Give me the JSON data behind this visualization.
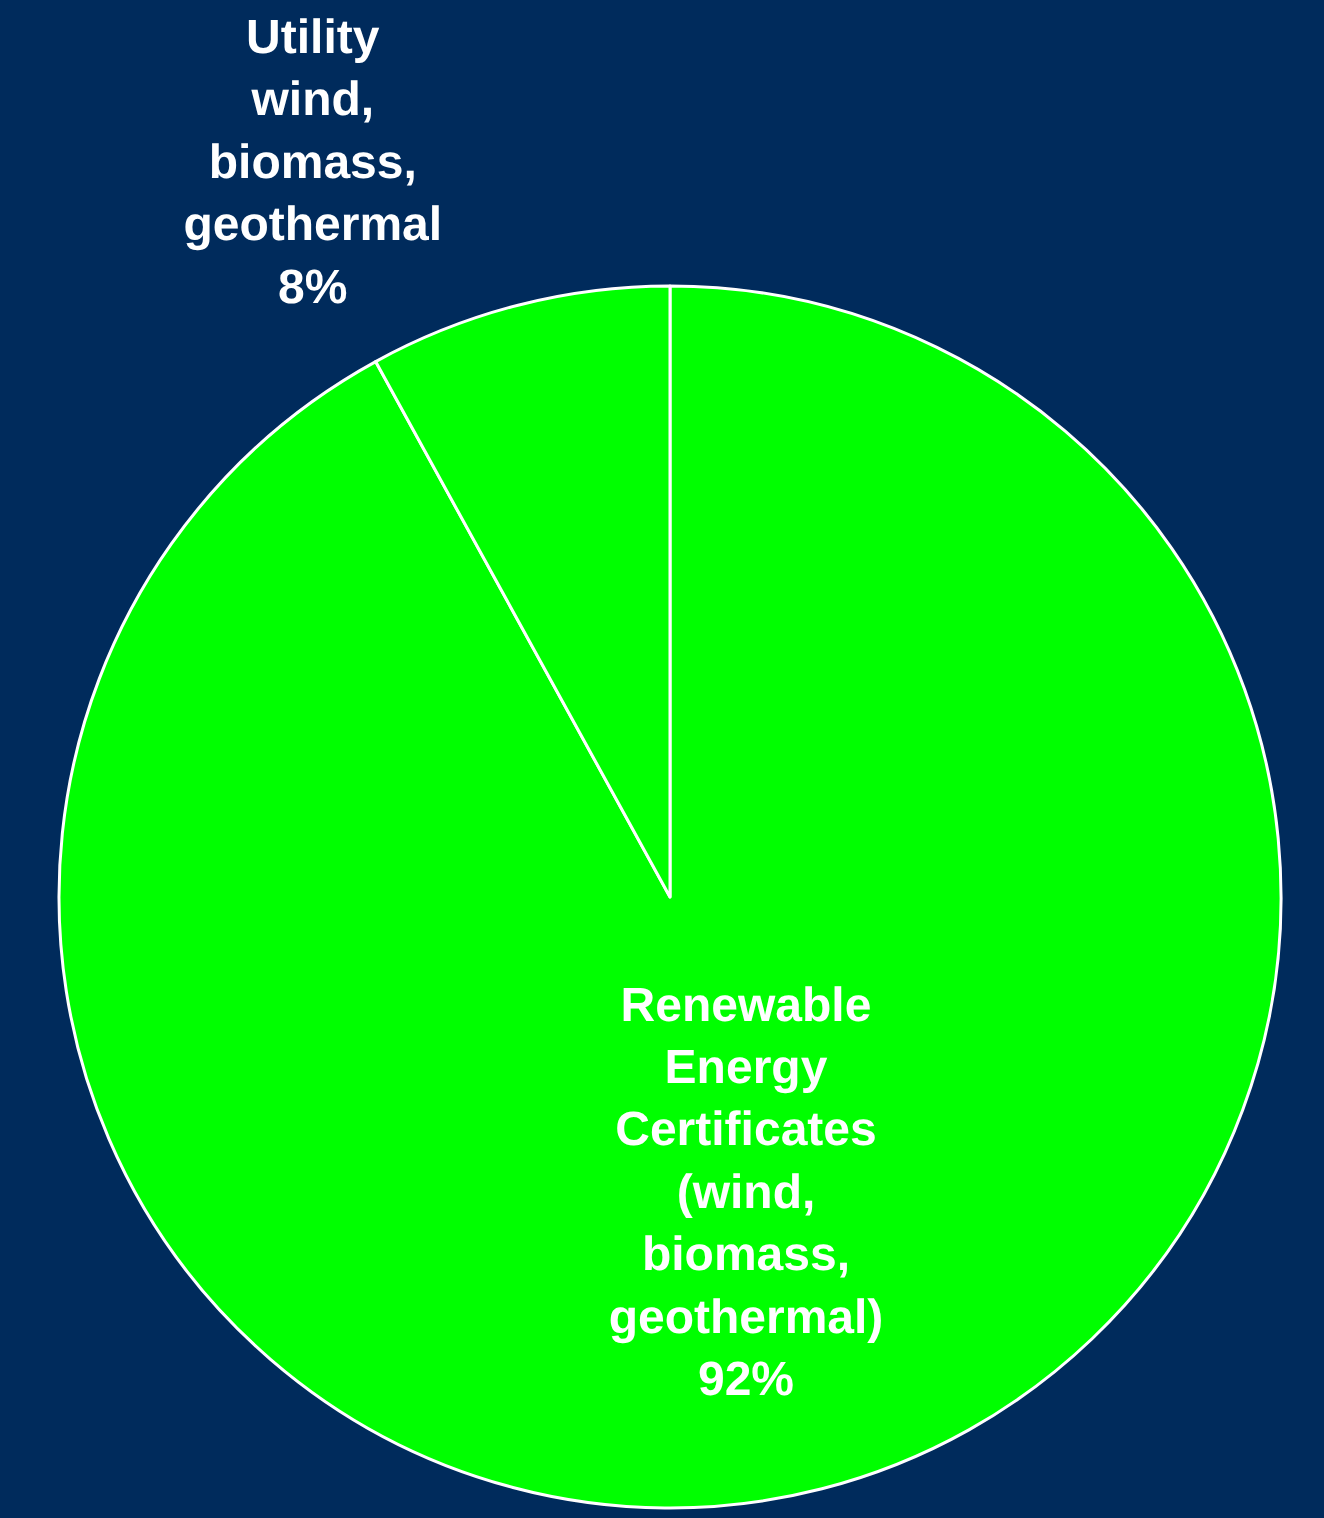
{
  "chart_data": {
    "type": "pie",
    "categories": [
      "Renewable Energy Certificates (wind, biomass, geothermal)",
      "Utility wind, biomass, geothermal"
    ],
    "values": [
      92,
      8
    ],
    "value_labels": [
      "92%",
      "8%"
    ],
    "colors": [
      "#00ff00",
      "#00ff00"
    ],
    "legend": false
  }
}
